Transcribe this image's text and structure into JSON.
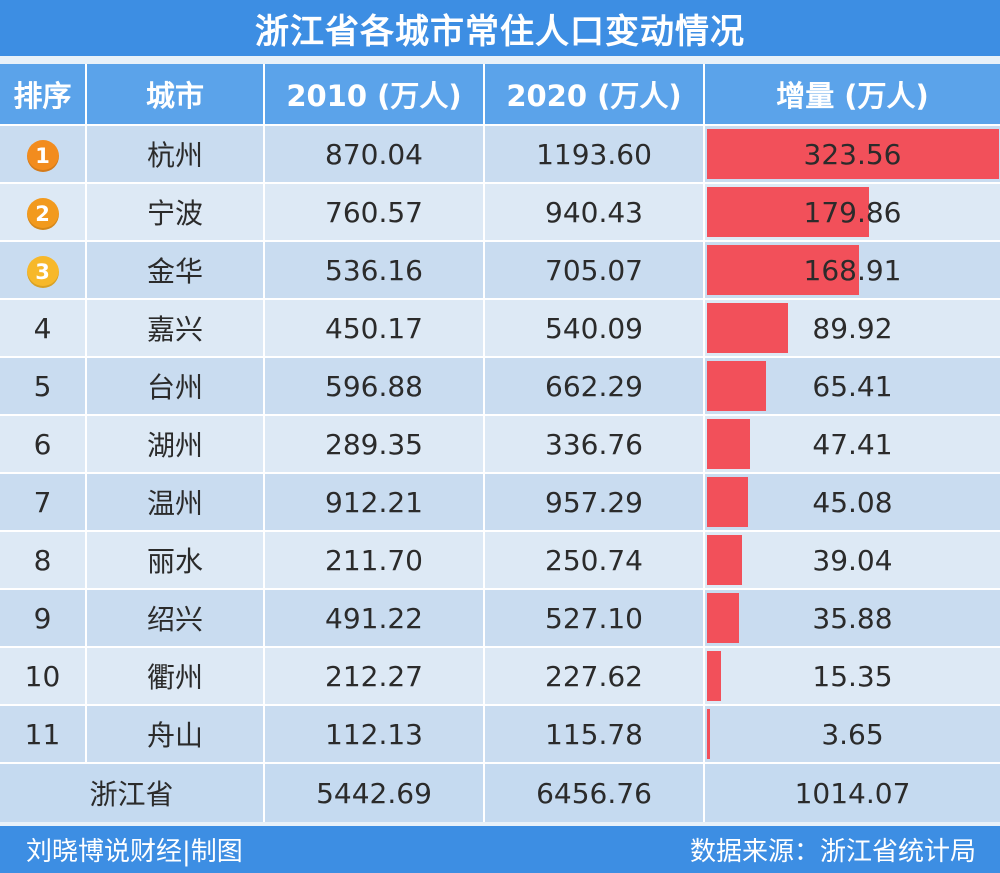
{
  "title": "浙江省各城市常住人口变动情况",
  "chart_data": {
    "type": "table",
    "headers": [
      "排序",
      "城市",
      "2010 (万人)",
      "2020 (万人)",
      "增量 (万人)"
    ],
    "rows": [
      {
        "rank": "1",
        "city": "杭州",
        "y2010": "870.04",
        "y2020": "1193.60",
        "increase": "323.56",
        "increase_value": 323.56
      },
      {
        "rank": "2",
        "city": "宁波",
        "y2010": "760.57",
        "y2020": "940.43",
        "increase": "179.86",
        "increase_value": 179.86
      },
      {
        "rank": "3",
        "city": "金华",
        "y2010": "536.16",
        "y2020": "705.07",
        "increase": "168.91",
        "increase_value": 168.91
      },
      {
        "rank": "4",
        "city": "嘉兴",
        "y2010": "450.17",
        "y2020": "540.09",
        "increase": "89.92",
        "increase_value": 89.92
      },
      {
        "rank": "5",
        "city": "台州",
        "y2010": "596.88",
        "y2020": "662.29",
        "increase": "65.41",
        "increase_value": 65.41
      },
      {
        "rank": "6",
        "city": "湖州",
        "y2010": "289.35",
        "y2020": "336.76",
        "increase": "47.41",
        "increase_value": 47.41
      },
      {
        "rank": "7",
        "city": "温州",
        "y2010": "912.21",
        "y2020": "957.29",
        "increase": "45.08",
        "increase_value": 45.08
      },
      {
        "rank": "8",
        "city": "丽水",
        "y2010": "211.70",
        "y2020": "250.74",
        "increase": "39.04",
        "increase_value": 39.04
      },
      {
        "rank": "9",
        "city": "绍兴",
        "y2010": "491.22",
        "y2020": "527.10",
        "increase": "35.88",
        "increase_value": 35.88
      },
      {
        "rank": "10",
        "city": "衢州",
        "y2010": "212.27",
        "y2020": "227.62",
        "increase": "15.35",
        "increase_value": 15.35
      },
      {
        "rank": "11",
        "city": "舟山",
        "y2010": "112.13",
        "y2020": "115.78",
        "increase": "3.65",
        "increase_value": 3.65
      }
    ],
    "total": {
      "label": "浙江省",
      "y2010": "5442.69",
      "y2020": "6456.76",
      "increase": "1014.07"
    },
    "bar_max": 323.56
  },
  "badge_colors": [
    "#f28c1e",
    "#f29a1e",
    "#f7b82a"
  ],
  "bar_color": "#f2505a",
  "footer": {
    "author": "刘晓博说财经|制图",
    "source": "数据来源：浙江省统计局"
  }
}
